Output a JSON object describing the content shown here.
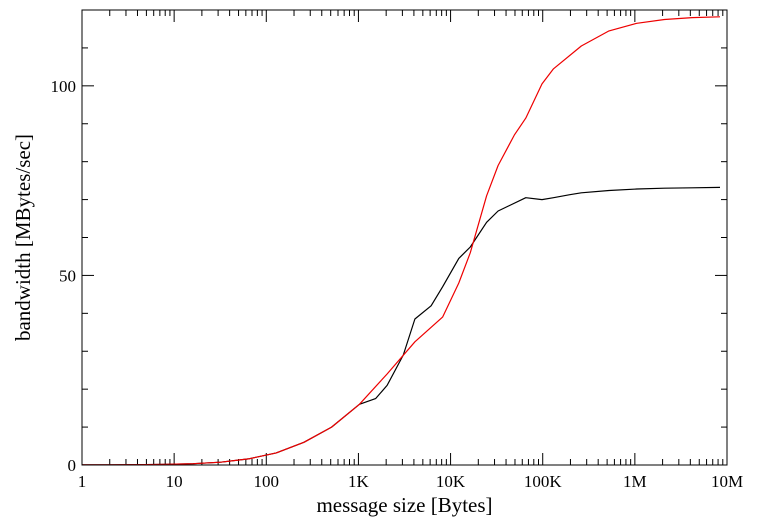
{
  "chart_data": {
    "type": "line",
    "xlabel": "message size [Bytes]",
    "ylabel": "bandwidth [MBytes/sec]",
    "xscale": "log10",
    "xlim": [
      1,
      10000000
    ],
    "ylim": [
      0,
      120
    ],
    "grid": false,
    "legend": "none",
    "x_ticks": [
      {
        "value": 1,
        "label": "1"
      },
      {
        "value": 10,
        "label": "10"
      },
      {
        "value": 100,
        "label": "100"
      },
      {
        "value": 1000,
        "label": "1K"
      },
      {
        "value": 10000,
        "label": "10K"
      },
      {
        "value": 100000,
        "label": "100K"
      },
      {
        "value": 1000000,
        "label": "1M"
      },
      {
        "value": 10000000,
        "label": "10M"
      }
    ],
    "y_ticks": [
      {
        "value": 0,
        "label": "0"
      },
      {
        "value": 50,
        "label": "50"
      },
      {
        "value": 100,
        "label": "100"
      }
    ],
    "y_minor_step": 10,
    "series": [
      {
        "color": "#000000",
        "points": [
          [
            1,
            0.02
          ],
          [
            2,
            0.04
          ],
          [
            4,
            0.08
          ],
          [
            8,
            0.16
          ],
          [
            16,
            0.35
          ],
          [
            32,
            0.75
          ],
          [
            64,
            1.6
          ],
          [
            128,
            3.2
          ],
          [
            256,
            6.0
          ],
          [
            512,
            10.0
          ],
          [
            1024,
            16.0
          ],
          [
            1536,
            17.5
          ],
          [
            2048,
            21.0
          ],
          [
            3072,
            29.0
          ],
          [
            4096,
            38.5
          ],
          [
            6144,
            42.0
          ],
          [
            8192,
            47.0
          ],
          [
            12288,
            54.5
          ],
          [
            16384,
            57.5
          ],
          [
            24576,
            64.0
          ],
          [
            32768,
            67.0
          ],
          [
            65536,
            70.5
          ],
          [
            98304,
            70.0
          ],
          [
            131072,
            70.5
          ],
          [
            196608,
            71.3
          ],
          [
            262144,
            71.8
          ],
          [
            524288,
            72.4
          ],
          [
            1048576,
            72.8
          ],
          [
            2097152,
            73.0
          ],
          [
            4194304,
            73.1
          ],
          [
            8388608,
            73.2
          ]
        ]
      },
      {
        "color": "#ee0000",
        "points": [
          [
            1,
            0.02
          ],
          [
            2,
            0.04
          ],
          [
            4,
            0.08
          ],
          [
            8,
            0.16
          ],
          [
            16,
            0.35
          ],
          [
            32,
            0.75
          ],
          [
            64,
            1.6
          ],
          [
            128,
            3.2
          ],
          [
            256,
            6.0
          ],
          [
            512,
            10.0
          ],
          [
            1024,
            16.0
          ],
          [
            2048,
            24.0
          ],
          [
            4096,
            32.5
          ],
          [
            8192,
            39.0
          ],
          [
            12288,
            48.0
          ],
          [
            16384,
            56.0
          ],
          [
            24576,
            71.0
          ],
          [
            32768,
            79.0
          ],
          [
            49152,
            87.0
          ],
          [
            65536,
            91.5
          ],
          [
            98304,
            100.5
          ],
          [
            131072,
            104.5
          ],
          [
            262144,
            110.5
          ],
          [
            524288,
            114.5
          ],
          [
            1048576,
            116.5
          ],
          [
            2097152,
            117.5
          ],
          [
            4194304,
            118.0
          ],
          [
            8388608,
            118.2
          ]
        ]
      }
    ]
  }
}
